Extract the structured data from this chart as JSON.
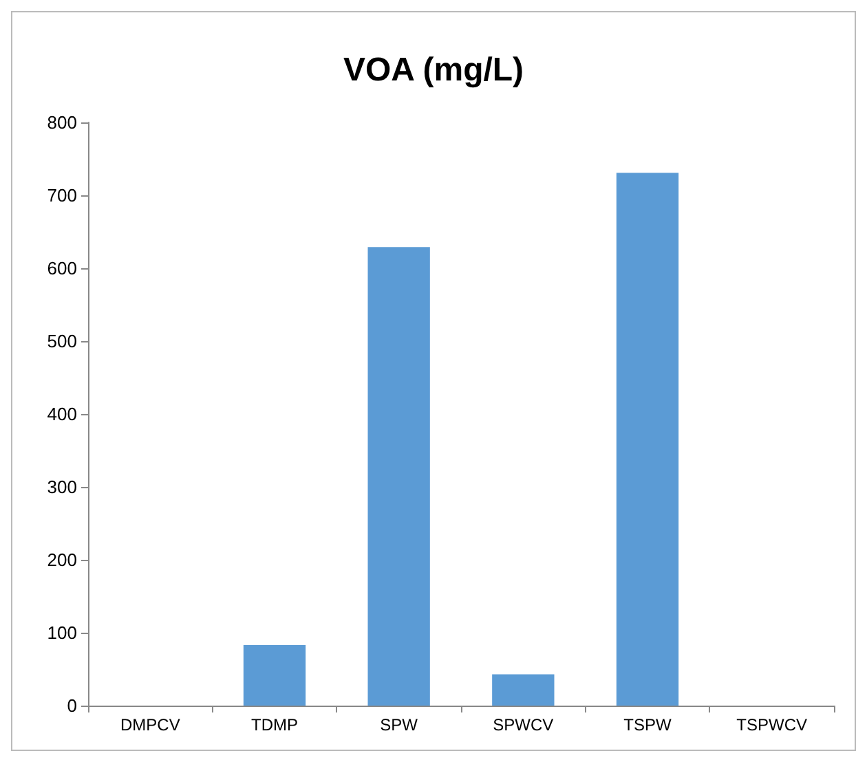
{
  "chart_data": {
    "type": "bar",
    "title": "VOA (mg/L)",
    "categories": [
      "DMPCV",
      "TDMP",
      "SPW",
      "SPWCV",
      "TSPW",
      "TSPWCV"
    ],
    "values": [
      0,
      83,
      629,
      43,
      731,
      0
    ],
    "color": "#5b9bd5",
    "ylim": [
      0,
      800
    ],
    "yticks": [
      0,
      100,
      200,
      300,
      400,
      500,
      600,
      700,
      800
    ],
    "grid": false
  }
}
